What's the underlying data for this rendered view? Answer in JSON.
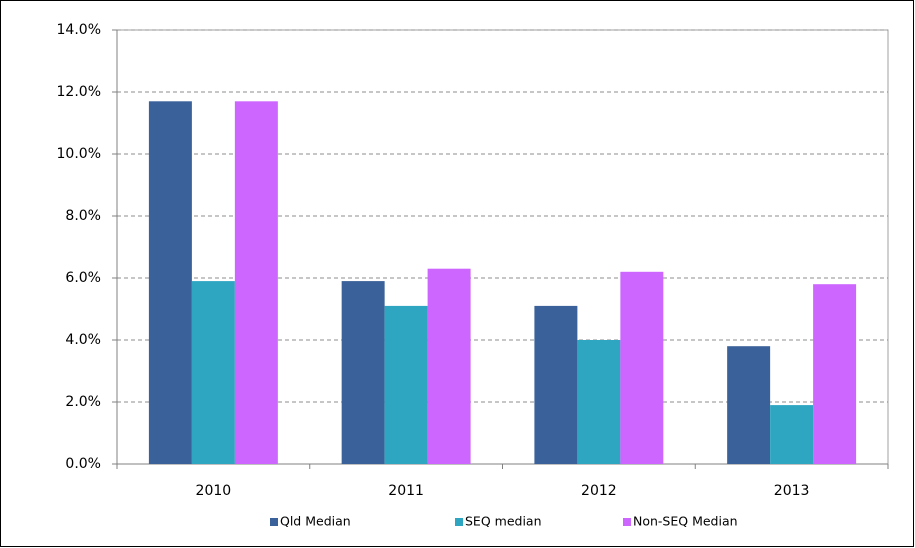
{
  "chart_data": {
    "type": "bar",
    "categories": [
      "2010",
      "2011",
      "2012",
      "2013"
    ],
    "series": [
      {
        "name": "Qld Median",
        "color": "#3a6199",
        "values": [
          11.7,
          5.9,
          5.1,
          3.8
        ]
      },
      {
        "name": "SEQ median",
        "color": "#2ea5c1",
        "values": [
          5.9,
          5.1,
          4.0,
          1.9
        ]
      },
      {
        "name": "Non-SEQ Median",
        "color": "#cc66ff",
        "values": [
          11.7,
          6.3,
          6.2,
          5.8
        ]
      }
    ],
    "ylim": [
      0,
      14
    ],
    "yticks": [
      {
        "value": 0,
        "label": "0.0%"
      },
      {
        "value": 2,
        "label": "2.0%"
      },
      {
        "value": 4,
        "label": "4.0%"
      },
      {
        "value": 6,
        "label": "6.0%"
      },
      {
        "value": 8,
        "label": "8.0%"
      },
      {
        "value": 10,
        "label": "10.0%"
      },
      {
        "value": 12,
        "label": "12.0%"
      },
      {
        "value": 14,
        "label": "14.0%"
      }
    ],
    "grid": true,
    "legend": "bottom"
  }
}
